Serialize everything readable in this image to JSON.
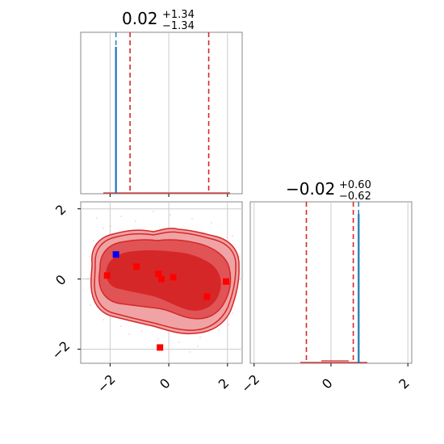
{
  "chart_data": {
    "type": "corner",
    "grid": true,
    "colors": {
      "contour": "#d62728",
      "contour_fill": "#f0a3a4",
      "samples_hist": "#1f77b4",
      "quantile_lines": "#d62728",
      "truth_marker_red": "#ff0000",
      "truth_marker_blue": "#0000ff",
      "grid": "#cccccc",
      "spine": "#888888"
    },
    "param1": {
      "title": {
        "median": "0.02",
        "upper": "+1.34",
        "lower": "−1.34"
      },
      "xlim": [
        -3,
        2.5
      ],
      "xticks": [
        -2,
        0,
        2
      ],
      "xtick_labels": [
        "−2",
        "0",
        "2"
      ],
      "quantiles": [
        -1.32,
        1.36
      ],
      "samples_line_x": -1.8,
      "truth_line_x": -1.8
    },
    "param2": {
      "title": {
        "median": "−0.02",
        "upper": "+0.60",
        "lower": "−0.62"
      },
      "xlim": [
        -2.1,
        2.1
      ],
      "xticks": [
        -2,
        0,
        2
      ],
      "xtick_labels": [
        "−2",
        "0",
        "2"
      ],
      "quantiles": [
        -0.64,
        0.58
      ],
      "samples_line_x": 0.72,
      "truth_line_x": 0.72
    },
    "joint": {
      "xlim": [
        -3,
        2.5
      ],
      "ylim": [
        -2.4,
        2.2
      ],
      "yticks": [
        -2,
        0,
        2
      ],
      "ytick_labels": [
        "−2",
        "0",
        "2"
      ],
      "red_points": [
        {
          "x": -2.1,
          "y": 0.1
        },
        {
          "x": -1.1,
          "y": 0.35
        },
        {
          "x": -0.35,
          "y": 0.15
        },
        {
          "x": -0.25,
          "y": 0.0
        },
        {
          "x": 0.15,
          "y": 0.05
        },
        {
          "x": 1.3,
          "y": -0.5
        },
        {
          "x": 1.95,
          "y": -0.07
        },
        {
          "x": -0.3,
          "y": -1.95
        }
      ],
      "blue_points": [
        {
          "x": -1.8,
          "y": 0.7
        }
      ]
    }
  }
}
